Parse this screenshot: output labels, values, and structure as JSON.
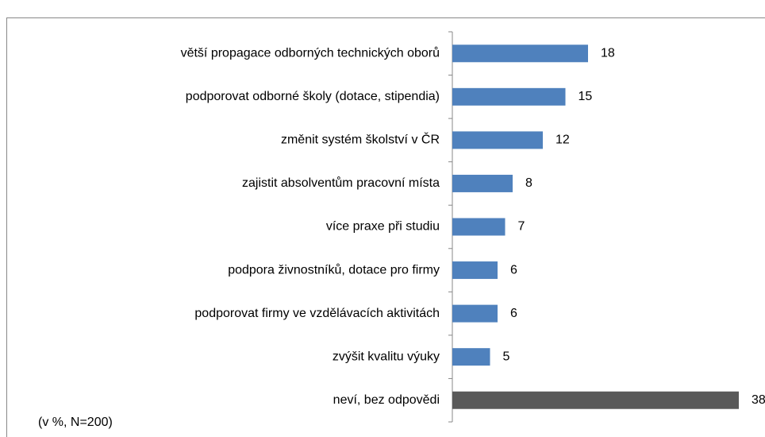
{
  "chart_data": {
    "type": "hbar",
    "categories": [
      "větší propagace odborných technických oborů",
      "podporovat odborné školy (dotace, stipendia)",
      "změnit systém školství v ČR",
      "zajistit absolventům pracovní místa",
      "více praxe při studiu",
      "podpora živnostníků, dotace pro firmy",
      "podporovat firmy ve vzdělávacích aktivitách",
      "zvýšit kvalitu výuky",
      "neví, bez odpovědi"
    ],
    "values": [
      18,
      15,
      12,
      8,
      7,
      6,
      6,
      5,
      38
    ],
    "colors": [
      "#4f81bd",
      "#4f81bd",
      "#4f81bd",
      "#4f81bd",
      "#4f81bd",
      "#4f81bd",
      "#4f81bd",
      "#4f81bd",
      "#595959"
    ],
    "note": "(v %, N=200)"
  }
}
